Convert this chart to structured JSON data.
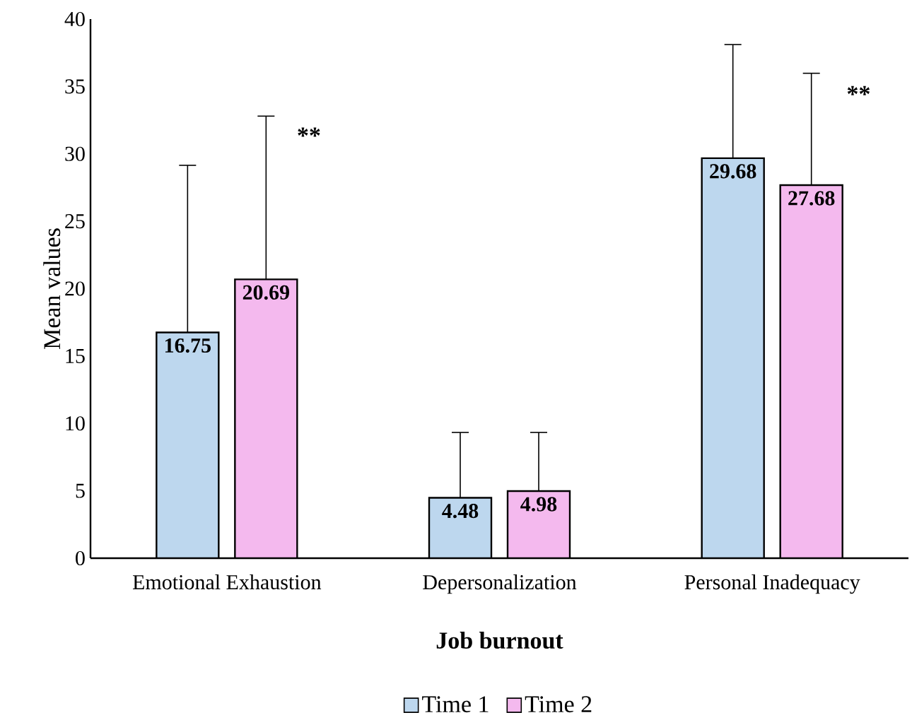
{
  "chart_data": {
    "type": "bar",
    "xlabel": "Job burnout",
    "ylabel": "Mean values",
    "categories": [
      "Emotional Exhaustion",
      "Depersonalization",
      "Personal Inadequacy"
    ],
    "series": [
      {
        "name": "Time 1",
        "color": "#bdd7ee",
        "values": [
          16.75,
          4.48,
          29.68
        ],
        "errors": [
          [
            16.75,
            29.15
          ],
          [
            4.48,
            9.33
          ],
          [
            29.68,
            38.11
          ]
        ]
      },
      {
        "name": "Time 2",
        "color": "#f4b9ee",
        "values": [
          20.69,
          4.98,
          27.68
        ],
        "errors": [
          [
            20.69,
            32.8
          ],
          [
            4.98,
            9.33
          ],
          [
            27.68,
            35.98
          ]
        ]
      }
    ],
    "ylim": [
      0,
      40
    ],
    "yticks": [
      0,
      5,
      10,
      15,
      20,
      25,
      30,
      35,
      40
    ],
    "grid": false,
    "legend": "bottom",
    "data_labels": true,
    "annotations": [
      "**",
      "**"
    ]
  }
}
